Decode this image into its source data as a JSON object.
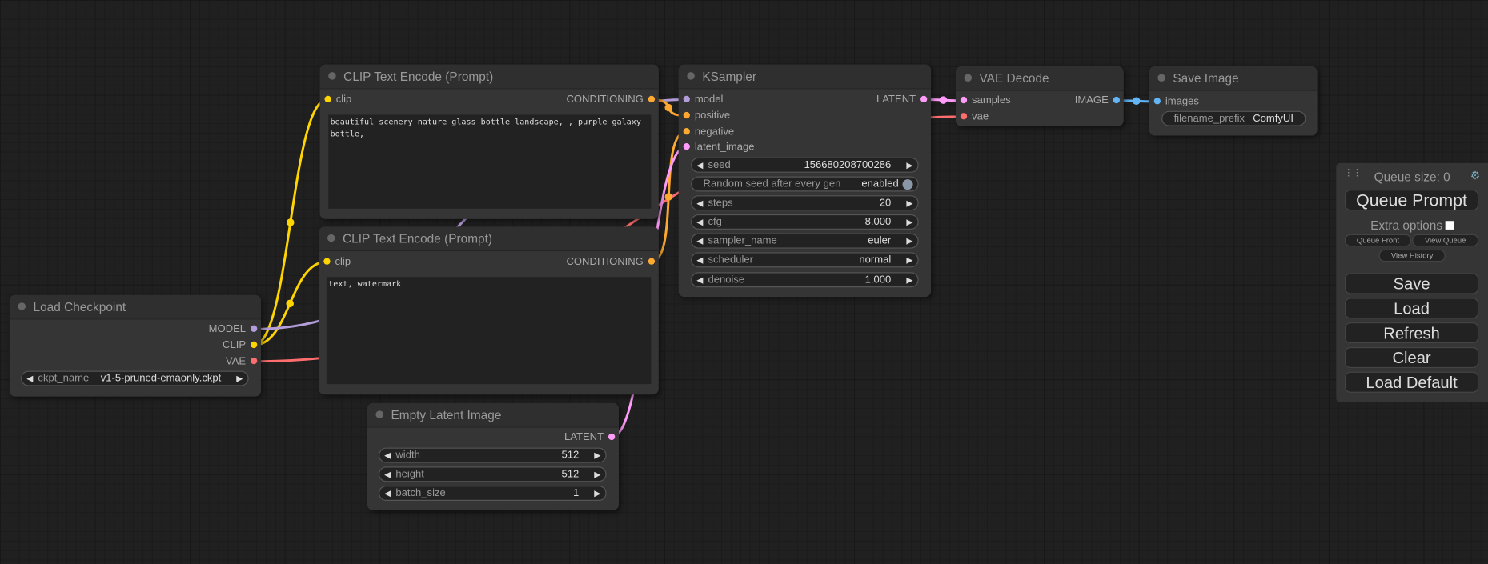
{
  "nodes": {
    "clip_positive": {
      "title": "CLIP Text Encode (Prompt)",
      "input": "clip",
      "output": "CONDITIONING",
      "text": "beautiful scenery nature glass bottle landscape, , purple galaxy bottle,"
    },
    "clip_negative": {
      "title": "CLIP Text Encode (Prompt)",
      "input": "clip",
      "output": "CONDITIONING",
      "text": "text, watermark"
    },
    "load_checkpoint": {
      "title": "Load Checkpoint",
      "outputs": [
        "MODEL",
        "CLIP",
        "VAE"
      ],
      "ckpt_name": {
        "label": "ckpt_name",
        "value": "v1-5-pruned-emaonly.ckpt"
      }
    },
    "empty_latent": {
      "title": "Empty Latent Image",
      "output": "LATENT",
      "widgets": [
        {
          "label": "width",
          "value": "512"
        },
        {
          "label": "height",
          "value": "512"
        },
        {
          "label": "batch_size",
          "value": "1"
        }
      ]
    },
    "ksampler": {
      "title": "KSampler",
      "inputs": [
        "model",
        "positive",
        "negative",
        "latent_image"
      ],
      "output": "LATENT",
      "seed": {
        "label": "seed",
        "value": "156680208700286"
      },
      "random_seed": {
        "label": "Random seed after every gen",
        "value": "enabled"
      },
      "steps": {
        "label": "steps",
        "value": "20"
      },
      "cfg": {
        "label": "cfg",
        "value": "8.000"
      },
      "sampler_name": {
        "label": "sampler_name",
        "value": "euler"
      },
      "scheduler": {
        "label": "scheduler",
        "value": "normal"
      },
      "denoise": {
        "label": "denoise",
        "value": "1.000"
      }
    },
    "vae_decode": {
      "title": "VAE Decode",
      "inputs": [
        "samples",
        "vae"
      ],
      "output": "IMAGE"
    },
    "save_image": {
      "title": "Save Image",
      "input": "images",
      "filename_prefix": {
        "label": "filename_prefix",
        "value": "ComfyUI"
      }
    }
  },
  "panel": {
    "queue_size": "Queue size: 0",
    "queue_prompt": "Queue Prompt",
    "extra_options": "Extra options",
    "queue_front": "Queue Front",
    "view_queue": "View Queue",
    "view_history": "View History",
    "save": "Save",
    "load": "Load",
    "refresh": "Refresh",
    "clear": "Clear",
    "load_default": "Load Default"
  },
  "colors": {
    "clip": "#ffd500",
    "model": "#b39ddb",
    "vae": "#ff6e6e",
    "conditioning": "#ffa931",
    "latent": "#ff9cf9",
    "image": "#64b5f6"
  }
}
